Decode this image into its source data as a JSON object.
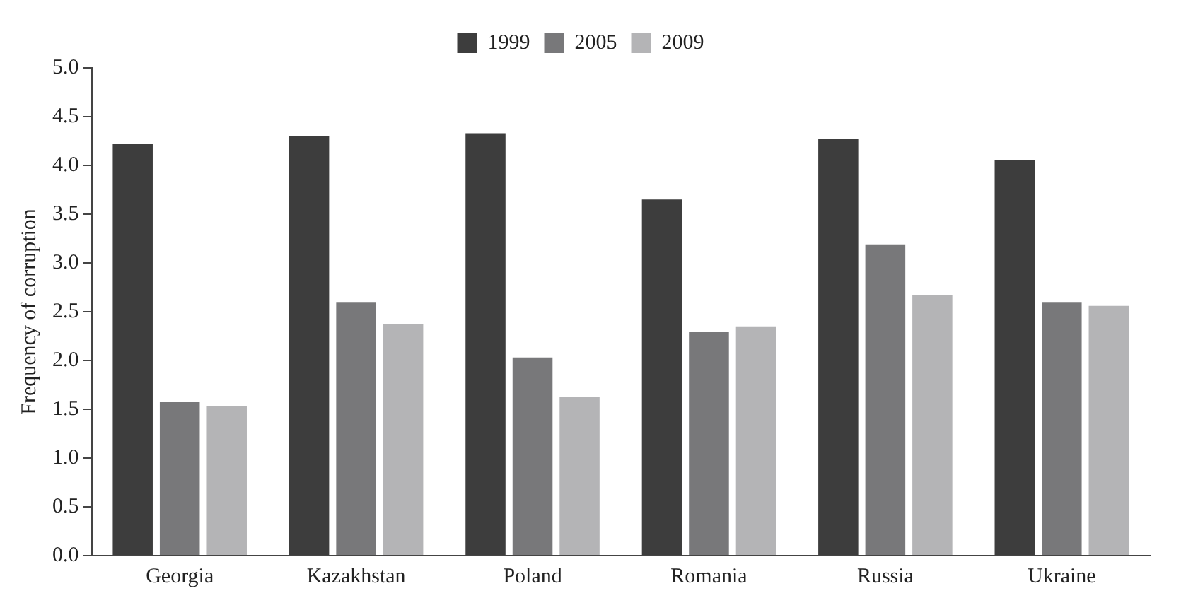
{
  "chart_data": {
    "type": "bar",
    "ylabel": "Frequency of corruption",
    "categories": [
      "Georgia",
      "Kazakhstan",
      "Poland",
      "Romania",
      "Russia",
      "Ukraine"
    ],
    "series": [
      {
        "name": "1999",
        "color": "#3d3d3d",
        "values": [
          4.22,
          4.3,
          4.33,
          3.65,
          4.27,
          4.05
        ]
      },
      {
        "name": "2005",
        "color": "#78787a",
        "values": [
          1.58,
          2.6,
          2.03,
          2.29,
          3.19,
          2.6
        ]
      },
      {
        "name": "2009",
        "color": "#b4b4b6",
        "values": [
          1.53,
          2.37,
          1.63,
          2.35,
          2.67,
          2.56
        ]
      }
    ],
    "ylim": [
      0,
      5
    ],
    "yticks": [
      {
        "value": 0,
        "label": "0.0"
      },
      {
        "value": 0.5,
        "label": "0.5"
      },
      {
        "value": 1,
        "label": "1.0"
      },
      {
        "value": 1.5,
        "label": "1.5"
      },
      {
        "value": 2,
        "label": "2.0"
      },
      {
        "value": 2.5,
        "label": "2.5"
      },
      {
        "value": 3,
        "label": "3.0"
      },
      {
        "value": 3.5,
        "label": "3.5"
      },
      {
        "value": 4,
        "label": "4.0"
      },
      {
        "value": 4.5,
        "label": "4.5"
      },
      {
        "value": 5,
        "label": "5.0"
      }
    ],
    "grid": false,
    "legend": "top"
  }
}
